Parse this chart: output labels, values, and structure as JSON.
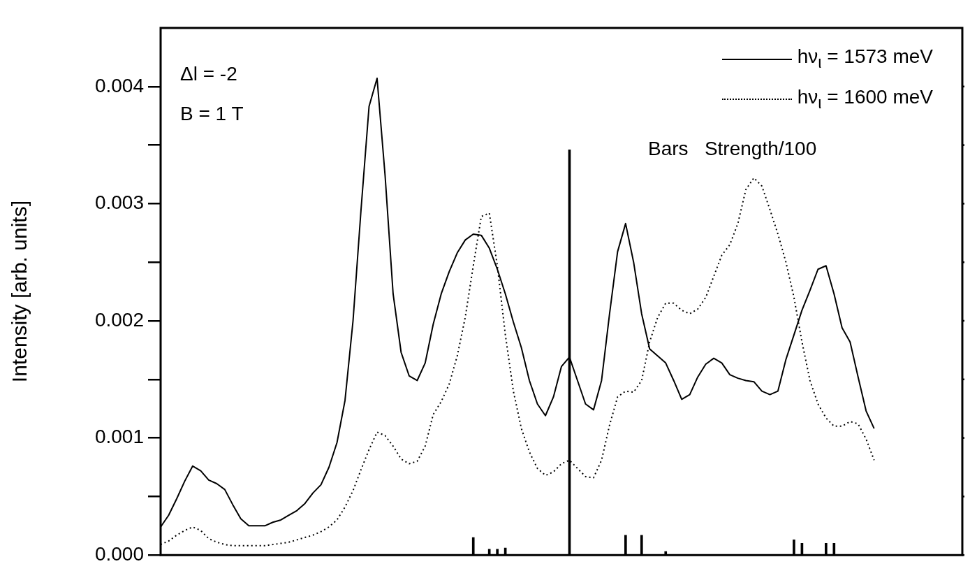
{
  "chart_data": {
    "type": "line",
    "ylabel": "Intensity [arb. units]",
    "annotations": [
      "Δl = -2",
      "B = 1 T",
      "Bars   Strength/100"
    ],
    "categories": [
      null,
      null,
      null,
      null,
      null,
      null,
      null,
      null,
      null,
      null,
      null,
      null,
      null,
      null,
      null,
      null,
      null,
      null,
      null,
      null,
      null,
      null,
      null,
      null,
      null,
      null,
      null,
      null,
      null,
      null,
      null,
      null,
      null,
      null,
      null,
      null,
      null,
      null,
      null,
      null,
      null,
      null,
      null,
      null,
      null,
      null,
      null,
      null,
      null,
      null,
      null,
      null,
      null,
      null,
      null,
      null,
      null,
      null,
      null,
      null,
      null,
      null,
      null,
      null,
      null,
      null,
      null,
      null,
      null,
      null,
      null,
      null,
      null,
      null,
      null,
      null,
      null,
      null,
      null,
      null,
      null,
      null,
      null,
      null,
      null,
      null,
      null,
      null,
      null,
      null,
      null,
      null,
      null,
      null,
      null,
      null,
      null,
      null,
      null,
      null,
      null
    ],
    "series": [
      {
        "name": "hν$_{ι}$ = 1573 meV",
        "color": "#000000",
        "line_style": "solid",
        "values": [
          0.00024,
          0.00034,
          0.00048,
          0.00063,
          0.00076,
          0.00072,
          0.00064,
          0.00061,
          0.00056,
          0.00043,
          0.00031,
          0.00025,
          0.00025,
          0.00025,
          0.00028,
          0.0003,
          0.00034,
          0.00038,
          0.00044,
          0.00053,
          0.0006,
          0.00075,
          0.00096,
          0.00132,
          0.002,
          0.00295,
          0.00383,
          0.00407,
          0.00324,
          0.00223,
          0.00173,
          0.00153,
          0.00149,
          0.00164,
          0.00197,
          0.00223,
          0.00242,
          0.00258,
          0.00269,
          0.00274,
          0.00273,
          0.00262,
          0.00244,
          0.00223,
          0.00199,
          0.00177,
          0.00149,
          0.00129,
          0.00119,
          0.00135,
          0.00161,
          0.00169,
          0.00149,
          0.00129,
          0.00124,
          0.00149,
          0.00206,
          0.00259,
          0.00283,
          0.0025,
          0.00206,
          0.00176,
          0.0017,
          0.00164,
          0.00149,
          0.00133,
          0.00137,
          0.00152,
          0.00163,
          0.00168,
          0.00164,
          0.00154,
          0.00151,
          0.00149,
          0.00148,
          0.0014,
          0.00137,
          0.0014,
          0.00167,
          0.00188,
          0.00209,
          0.00226,
          0.00244,
          0.00247,
          0.00223,
          0.00194,
          0.00182,
          0.00152,
          0.00123,
          0.00108,
          null,
          null,
          null,
          null,
          null,
          null,
          null,
          null,
          null,
          null,
          null
        ]
      },
      {
        "name": "hν$_{ι}$ = 1600 meV",
        "color": "#000000",
        "line_style": "dotted",
        "values": [
          9e-05,
          0.00012,
          0.00017,
          0.00021,
          0.00024,
          0.00021,
          0.00014,
          0.00011,
          9e-05,
          8e-05,
          8e-05,
          8e-05,
          8e-05,
          8e-05,
          9e-05,
          0.0001,
          0.00011,
          0.00013,
          0.00015,
          0.00017,
          0.0002,
          0.00024,
          0.0003,
          0.00041,
          0.00055,
          0.00073,
          0.0009,
          0.00105,
          0.00102,
          0.00093,
          0.00082,
          0.00078,
          0.0008,
          0.00093,
          0.0012,
          0.00131,
          0.00146,
          0.0017,
          0.00203,
          0.00247,
          0.00289,
          0.00292,
          0.00247,
          0.00188,
          0.0014,
          0.00108,
          0.00088,
          0.00074,
          0.00068,
          0.00071,
          0.00078,
          0.00081,
          0.00074,
          0.00067,
          0.00066,
          0.00081,
          0.00111,
          0.00135,
          0.0014,
          0.00139,
          0.00149,
          0.00182,
          0.00203,
          0.00215,
          0.00215,
          0.00209,
          0.00206,
          0.0021,
          0.0022,
          0.00238,
          0.00256,
          0.00265,
          0.00283,
          0.00312,
          0.00322,
          0.00315,
          0.00295,
          0.00274,
          0.0025,
          0.0022,
          0.00182,
          0.00149,
          0.00129,
          0.00117,
          0.0011,
          0.0011,
          0.00114,
          0.00112,
          0.00099,
          0.00081,
          null,
          null,
          null,
          null,
          null,
          null,
          null,
          null,
          null,
          null,
          null
        ]
      },
      {
        "type": "bar",
        "color": "#000000",
        "values": [
          null,
          null,
          null,
          null,
          null,
          null,
          null,
          null,
          null,
          null,
          null,
          null,
          null,
          null,
          null,
          null,
          null,
          null,
          null,
          null,
          null,
          null,
          null,
          null,
          null,
          null,
          null,
          null,
          null,
          null,
          null,
          null,
          null,
          null,
          null,
          null,
          null,
          null,
          null,
          0.00015,
          null,
          5e-05,
          5e-05,
          6e-05,
          null,
          null,
          null,
          null,
          null,
          null,
          null,
          0.00346,
          null,
          null,
          null,
          null,
          null,
          null,
          0.00017,
          null,
          0.00017,
          null,
          null,
          3e-05,
          null,
          null,
          null,
          null,
          null,
          null,
          null,
          null,
          null,
          null,
          null,
          null,
          null,
          null,
          null,
          0.00013,
          0.0001,
          null,
          null,
          0.0001,
          0.0001,
          null,
          null,
          null,
          null,
          null,
          null,
          null,
          null,
          null,
          null,
          null,
          null,
          null,
          null,
          null,
          null
        ]
      }
    ],
    "ylim": [
      0,
      0.0045
    ],
    "yticks": [
      {
        "value": 0,
        "label": "0.000"
      },
      {
        "value": 0.0005,
        "label": null
      },
      {
        "value": 0.001,
        "label": "0.001"
      },
      {
        "value": 0.0015,
        "label": null
      },
      {
        "value": 0.002,
        "label": "0.002"
      },
      {
        "value": 0.0025,
        "label": null
      },
      {
        "value": 0.003,
        "label": "0.003"
      },
      {
        "value": 0.0035,
        "label": null
      },
      {
        "value": 0.004,
        "label": "0.004"
      }
    ],
    "tick_labels": "y",
    "legend": "top right",
    "marker": "none"
  }
}
